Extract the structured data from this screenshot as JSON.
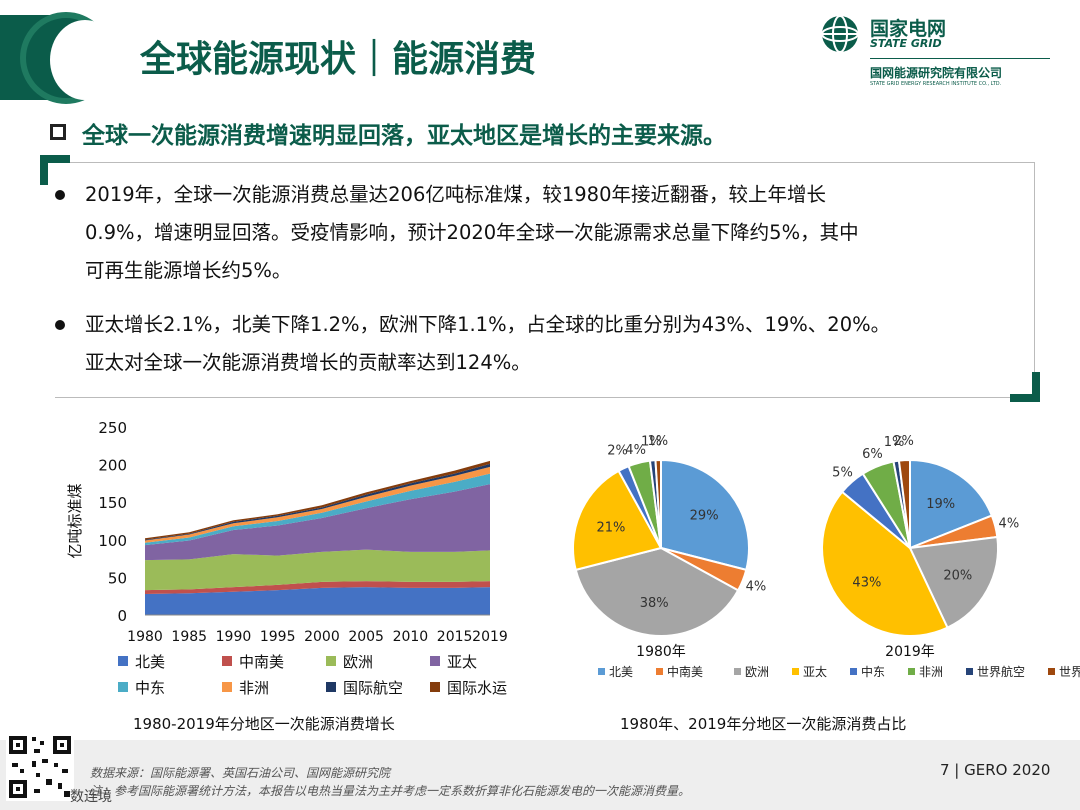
{
  "header": {
    "title": "全球能源现状｜能源消费",
    "logo_cn": "国家电网",
    "logo_en": "STATE GRID",
    "logo_sub_cn": "国网能源研究院有限公司",
    "logo_sub_en": "STATE GRID ENERGY RESEARCH INSTITUTE CO., LTD."
  },
  "subtitle": "全球一次能源消费增速明显回落，亚太地区是增长的主要来源。",
  "bullets": [
    {
      "lines": [
        "2019年，全球一次能源消费总量达206亿吨标准煤，较1980年接近翻番，较上年增长",
        "0.9%，增速明显回落。受疫情影响，预计2020年全球一次能源需求总量下降约5%，其中",
        "可再生能源增长约5%。"
      ]
    },
    {
      "lines": [
        "亚太增长2.1%，北美下降1.2%，欧洲下降1.1%，占全球的比重分别为43%、19%、20%。",
        "亚太对全球一次能源消费增长的贡献率达到124%。"
      ]
    }
  ],
  "captions": {
    "left": "1980-2019年分地区一次能源消费增长",
    "right": "1980年、2019年分地区一次能源消费占比"
  },
  "footer": {
    "source1": "数据来源：国际能源署、英国石油公司、国网能源研究院",
    "source2": "注：参考国际能源署统计方法，本报告以电热当量法为主并考虑一定系数折算非化石能源发电的一次能源消费量。",
    "page": "7 | GERO 2020",
    "qr_label": "数连境"
  },
  "chart_data": [
    {
      "type": "area",
      "stacked": true,
      "ylabel": "亿吨标准煤",
      "xlabel": "",
      "ylim": [
        0,
        250
      ],
      "yticks": [
        0,
        50,
        100,
        150,
        200,
        250
      ],
      "x": [
        1980,
        1985,
        1990,
        1995,
        2000,
        2005,
        2010,
        2015,
        2019
      ],
      "series": [
        {
          "name": "北美",
          "color": "#4472c4",
          "values": [
            28,
            29,
            31,
            33,
            36,
            37,
            36,
            36,
            37
          ]
        },
        {
          "name": "中南美",
          "color": "#c0504d",
          "values": [
            5,
            5,
            6,
            7,
            8,
            8,
            8,
            8,
            8
          ]
        },
        {
          "name": "欧洲",
          "color": "#9bbb59",
          "values": [
            40,
            40,
            44,
            39,
            40,
            42,
            40,
            40,
            41
          ]
        },
        {
          "name": "亚太",
          "color": "#8064a2",
          "values": [
            20,
            25,
            32,
            40,
            45,
            55,
            70,
            80,
            88
          ]
        },
        {
          "name": "中东",
          "color": "#4bacc6",
          "values": [
            3,
            4,
            5,
            6,
            7,
            9,
            11,
            13,
            14
          ]
        },
        {
          "name": "非洲",
          "color": "#f79646",
          "values": [
            3,
            4,
            4,
            5,
            5,
            6,
            7,
            8,
            9
          ]
        },
        {
          "name": "国际航空",
          "color": "#1f3864",
          "values": [
            1,
            1,
            2,
            2,
            2,
            3,
            3,
            3,
            4
          ]
        },
        {
          "name": "国际水运",
          "color": "#843c0c",
          "values": [
            2,
            2,
            2,
            2,
            3,
            3,
            3,
            4,
            4
          ]
        }
      ]
    },
    {
      "type": "pie",
      "xlabel": "1980年",
      "slices": [
        {
          "name": "北美",
          "value": 29,
          "label": "29%",
          "color": "#5b9bd5"
        },
        {
          "name": "中南美",
          "value": 4,
          "label": "4%",
          "color": "#ed7d31"
        },
        {
          "name": "欧洲",
          "value": 38,
          "label": "38%",
          "color": "#a5a5a5"
        },
        {
          "name": "亚太",
          "value": 21,
          "label": "21%",
          "color": "#ffc000"
        },
        {
          "name": "中东",
          "value": 2,
          "label": "2%",
          "color": "#4472c4"
        },
        {
          "name": "非洲",
          "value": 4,
          "label": "4%",
          "color": "#70ad47"
        },
        {
          "name": "世界航空",
          "value": 1,
          "label": "1%",
          "color": "#264478"
        },
        {
          "name": "世界航运",
          "value": 1,
          "label": "1%",
          "color": "#9e480e"
        }
      ]
    },
    {
      "type": "pie",
      "xlabel": "2019年",
      "slices": [
        {
          "name": "北美",
          "value": 19,
          "label": "19%",
          "color": "#5b9bd5"
        },
        {
          "name": "中南美",
          "value": 4,
          "label": "4%",
          "color": "#ed7d31"
        },
        {
          "name": "欧洲",
          "value": 20,
          "label": "20%",
          "color": "#a5a5a5"
        },
        {
          "name": "亚太",
          "value": 43,
          "label": "43%",
          "color": "#ffc000"
        },
        {
          "name": "中东",
          "value": 5,
          "label": "5%",
          "color": "#4472c4"
        },
        {
          "name": "非洲",
          "value": 6,
          "label": "6%",
          "color": "#70ad47"
        },
        {
          "name": "世界航空",
          "value": 1,
          "label": "1%",
          "color": "#264478"
        },
        {
          "name": "世界航运",
          "value": 2,
          "label": "2%",
          "color": "#9e480e"
        }
      ]
    }
  ]
}
